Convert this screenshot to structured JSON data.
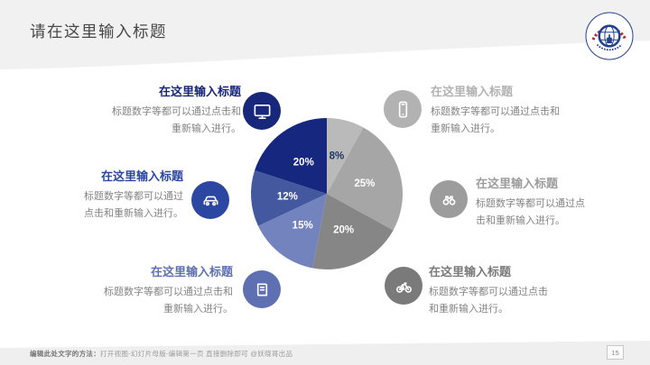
{
  "slide": {
    "title": "请在这里输入标题",
    "page_number": "15",
    "footer_bold": "编辑此处文字的方法：",
    "footer_rest": "打开视图-幻灯片母版-编辑第一页 直接删除即可 @妖晓哥出品"
  },
  "logo": {
    "name": "university-emblem"
  },
  "features": [
    {
      "position": "top-left",
      "icon": "monitor-icon",
      "accent": "#16277c",
      "title": "在这里输入标题",
      "body": "标题数字等都可以通过点击和重新输入进行。"
    },
    {
      "position": "top-right",
      "icon": "smartphone-icon",
      "accent": "#b2b2b2",
      "title": "在这里输入标题",
      "body": "标题数字等都可以通过点击和重新输入进行。"
    },
    {
      "position": "middle-left",
      "icon": "car-icon",
      "accent": "#2b47a1",
      "title": "在这里输入标题",
      "body": "标题数字等都可以通过点击和重新输入进行。"
    },
    {
      "position": "middle-right",
      "icon": "binoculars-icon",
      "accent": "#9c9c9c",
      "title": "在这里输入标题",
      "body": "标题数字等都可以通过点击和重新输入进行。"
    },
    {
      "position": "bottom-left",
      "icon": "book-icon",
      "accent": "#5e70b1",
      "title": "在这里输入标题",
      "body": "标题数字等都可以通过点击和重新输入进行。"
    },
    {
      "position": "bottom-right",
      "icon": "bicycle-icon",
      "accent": "#7a7a7a",
      "title": "在这里输入标题",
      "body": "标题数字等都可以通过点击和重新输入进行。"
    }
  ],
  "chart_data": {
    "type": "pie",
    "labels": [
      "8%",
      "25%",
      "20%",
      "15%",
      "12%",
      "20%"
    ],
    "values": [
      8,
      25,
      20,
      15,
      12,
      20
    ],
    "colors": [
      "#b9bab9",
      "#a6a6a6",
      "#868686",
      "#7383bd",
      "#44589f",
      "#15277e"
    ],
    "label_colors": [
      "#1f3864",
      "#ffffff",
      "#ffffff",
      "#ffffff",
      "#ffffff",
      "#ffffff"
    ],
    "start_angle_deg": 0,
    "direction": "clockwise",
    "legend": "none",
    "title": ""
  }
}
